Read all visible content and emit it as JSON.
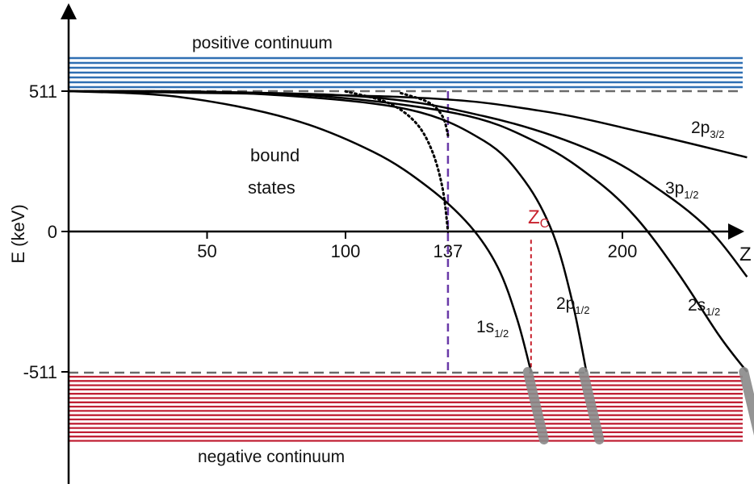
{
  "chart_data": {
    "type": "line",
    "xlabel": "Z",
    "ylabel": "E (keV)",
    "x_ticks": [
      50,
      100,
      137,
      200
    ],
    "y_ticks": [
      511,
      0,
      -511
    ],
    "xlim": [
      0,
      245
    ],
    "ylim": [
      -700,
      720
    ],
    "series": [
      {
        "name": "1s",
        "sub": "1/2",
        "x": [
          0,
          40,
          80,
          110,
          130,
          145,
          155,
          162,
          167
        ],
        "y": [
          511,
          490,
          410,
          290,
          160,
          20,
          -130,
          -320,
          -511
        ]
      },
      {
        "name": "2p",
        "sub": "1/2",
        "x": [
          0,
          60,
          120,
          150,
          165,
          175,
          182,
          187
        ],
        "y": [
          511,
          505,
          450,
          330,
          180,
          -10,
          -260,
          -511
        ]
      },
      {
        "name": "2s",
        "sub": "1/2",
        "x": [
          0,
          80,
          140,
          170,
          190,
          205,
          220,
          235,
          245
        ],
        "y": [
          511,
          500,
          430,
          320,
          190,
          50,
          -150,
          -380,
          -511
        ]
      },
      {
        "name": "3p",
        "sub": "1/2",
        "x": [
          0,
          100,
          150,
          190,
          215,
          232,
          245
        ],
        "y": [
          511,
          495,
          420,
          290,
          140,
          0,
          -165
        ]
      },
      {
        "name": "2p",
        "sub": "3/2",
        "x": [
          0,
          120,
          170,
          210,
          245
        ],
        "y": [
          511,
          490,
          440,
          355,
          270
        ]
      }
    ],
    "point_nucleus_curve": {
      "x": [
        100,
        115,
        125,
        131,
        135,
        137
      ],
      "y": [
        510,
        470,
        400,
        300,
        160,
        0
      ]
    },
    "point_nucleus_curve_2": {
      "x": [
        120,
        130,
        135,
        137
      ],
      "y": [
        504,
        470,
        420,
        350
      ]
    },
    "markers": {
      "z137": 137,
      "zc": 167,
      "zc_label": "Z",
      "zc_sub": "C"
    },
    "annotations": {
      "positive_continuum": "positive continuum",
      "negative_continuum": "negative continuum",
      "bound_line1": "bound",
      "bound_line2": "states"
    },
    "colors": {
      "positive": "#2f6fb3",
      "negative": "#c02035",
      "vline137": "#6a3aa8",
      "zc": "#c8202c",
      "curves": "#000000",
      "dashed": "#6b6b6b"
    }
  }
}
